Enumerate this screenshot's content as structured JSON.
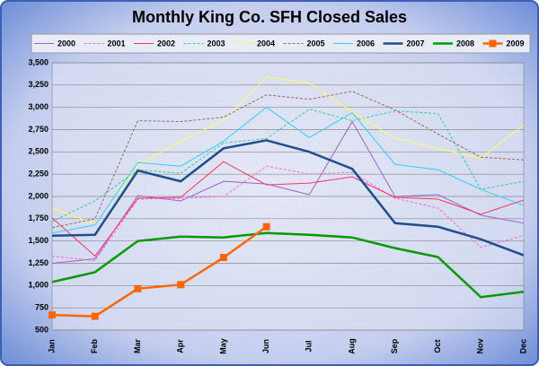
{
  "chart_data": {
    "type": "line",
    "title": "Monthly King Co. SFH Closed Sales",
    "categories": [
      "Jan",
      "Feb",
      "Mar",
      "Apr",
      "May",
      "Jun",
      "Jul",
      "Aug",
      "Sep",
      "Oct",
      "Nov",
      "Dec"
    ],
    "ylim": [
      500,
      3500
    ],
    "yticks": [
      500,
      {
        "value": 750,
        "label": "750"
      },
      {
        "value": 1000,
        "label": "1,000"
      },
      {
        "value": 1250,
        "label": "1,250"
      },
      {
        "value": 1500,
        "label": "1,500"
      },
      {
        "value": 1750,
        "label": "1,750"
      },
      {
        "value": 2000,
        "label": "2,000"
      },
      {
        "value": 2250,
        "label": "2,250"
      },
      {
        "value": 2500,
        "label": "2,500"
      },
      {
        "value": 2750,
        "label": "2,750"
      },
      {
        "value": 3000,
        "label": "3,000"
      },
      {
        "value": 3250,
        "label": "3,250"
      },
      {
        "value": 3500,
        "label": "3,500"
      }
    ],
    "grid": true,
    "series": [
      {
        "name": "2000",
        "color": "#9966cc",
        "width": 1,
        "dashed": false,
        "values": [
          1250,
          1300,
          2010,
          1950,
          2170,
          2140,
          2020,
          2840,
          2000,
          2020,
          1790,
          1700
        ]
      },
      {
        "name": "2001",
        "color": "#ff66cc",
        "width": 1,
        "dashed": true,
        "values": [
          1330,
          1280,
          1970,
          1980,
          2000,
          2340,
          2250,
          2270,
          1980,
          1870,
          1430,
          1560
        ]
      },
      {
        "name": "2002",
        "color": "#ff3366",
        "width": 1,
        "dashed": false,
        "values": [
          1760,
          1330,
          1980,
          1990,
          2390,
          2130,
          2150,
          2220,
          1990,
          1970,
          1800,
          1960
        ]
      },
      {
        "name": "2003",
        "color": "#33cc99",
        "width": 1,
        "dashed": true,
        "values": [
          1720,
          1950,
          2300,
          2260,
          2600,
          2650,
          2980,
          2850,
          2960,
          2930,
          2080,
          2170
        ]
      },
      {
        "name": "2004",
        "color": "#ffff66",
        "width": 1,
        "dashed": false,
        "values": [
          1870,
          1690,
          2350,
          2620,
          2850,
          3340,
          3270,
          2950,
          2650,
          2540,
          2430,
          2800
        ]
      },
      {
        "name": "2005",
        "color": "#996666",
        "width": 1,
        "dashed": true,
        "values": [
          1650,
          1750,
          2850,
          2840,
          2890,
          3140,
          3090,
          3180,
          2970,
          2700,
          2440,
          2410
        ]
      },
      {
        "name": "2006",
        "color": "#33ccff",
        "width": 1,
        "dashed": false,
        "values": [
          1590,
          1680,
          2380,
          2340,
          2620,
          3000,
          2660,
          2940,
          2360,
          2300,
          2080,
          1900
        ]
      },
      {
        "name": "2007",
        "color": "#1f4e8c",
        "width": 2.5,
        "dashed": false,
        "values": [
          1560,
          1570,
          2290,
          2170,
          2540,
          2630,
          2500,
          2310,
          1700,
          1660,
          1520,
          1340
        ]
      },
      {
        "name": "2008",
        "color": "#009900",
        "width": 2.5,
        "dashed": false,
        "values": [
          1040,
          1150,
          1500,
          1550,
          1540,
          1590,
          1570,
          1540,
          1420,
          1320,
          870,
          930
        ]
      },
      {
        "name": "2009",
        "color": "#ff6600",
        "width": 2.5,
        "dashed": false,
        "marker": "square",
        "values": [
          670,
          655,
          965,
          1010,
          1315,
          1660,
          null,
          null,
          null,
          null,
          null,
          null
        ]
      }
    ]
  }
}
